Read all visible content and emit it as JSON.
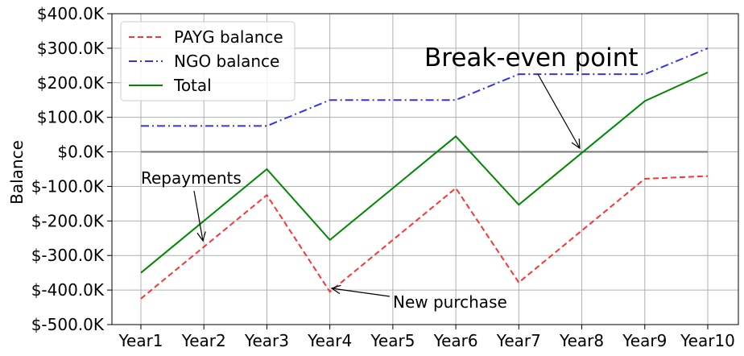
{
  "chart_data": {
    "type": "line",
    "xlabel": "",
    "ylabel": "Balance",
    "categories": [
      "Year1",
      "Year2",
      "Year3",
      "Year4",
      "Year5",
      "Year6",
      "Year7",
      "Year8",
      "Year9",
      "Year10"
    ],
    "ylim": [
      -500,
      400
    ],
    "yticks": [
      -500,
      -400,
      -300,
      -200,
      -100,
      0,
      100,
      200,
      300,
      400
    ],
    "ytick_labels": [
      "$-500.0K",
      "$-400.0K",
      "$-300.0K",
      "$-200.0K",
      "$-100.0K",
      "$0.0K",
      "$100.0K",
      "$200.0K",
      "$300.0K",
      "$400.0K"
    ],
    "grid": true,
    "legend_position": "top-left",
    "series": [
      {
        "name": "PAYG balance",
        "color": "#ff3333",
        "style": "dashed",
        "values": [
          -425,
          -275,
          -125,
          -405,
          -255,
          -105,
          -378,
          -228,
          -78,
          -70
        ]
      },
      {
        "name": "NGO balance",
        "color": "#3333ee",
        "style": "dashdot",
        "values": [
          75,
          75,
          75,
          150,
          150,
          150,
          225,
          225,
          225,
          300
        ]
      },
      {
        "name": "Total",
        "color": "#008800",
        "style": "solid",
        "values": [
          -350,
          -200,
          -50,
          -255,
          -105,
          45,
          -153,
          -3,
          147,
          230
        ]
      }
    ],
    "reference_line": {
      "y": 0,
      "color": "#777777"
    },
    "annotations": [
      {
        "text": "Break-even point",
        "point": [
          "Year8",
          0
        ],
        "size": "large"
      },
      {
        "text": "Repayments",
        "point": [
          "Year2",
          -265
        ]
      },
      {
        "text": "New purchase",
        "point": [
          "Year4",
          -400
        ]
      }
    ]
  }
}
